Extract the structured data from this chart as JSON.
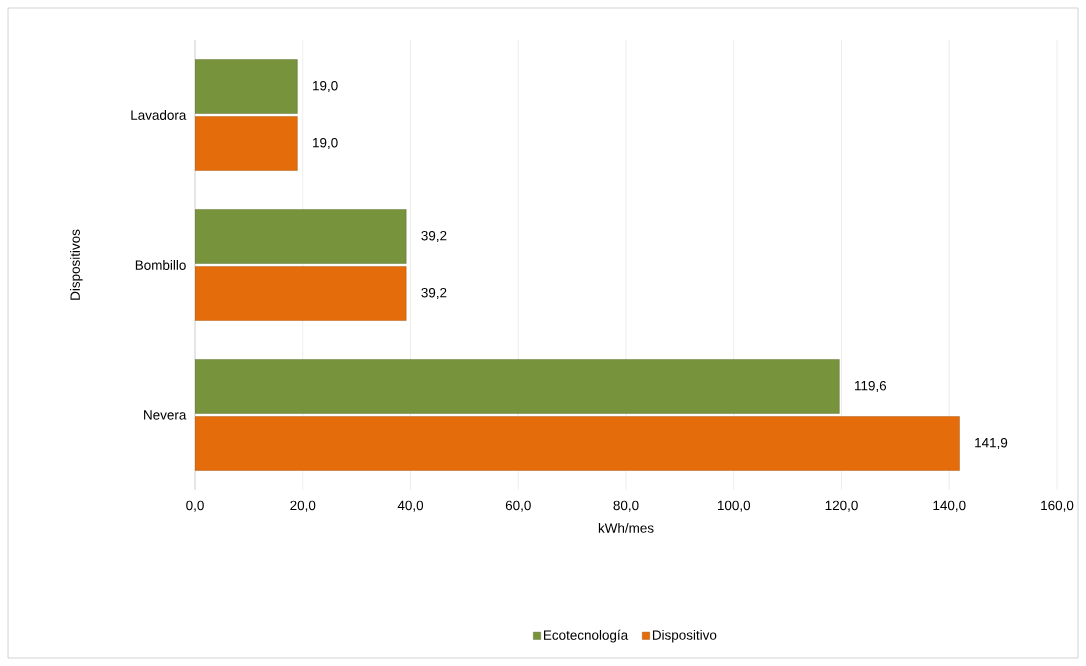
{
  "chart_data": {
    "type": "bar",
    "orientation": "horizontal",
    "xlabel": "kWh/mes",
    "ylabel": "Dispositivos",
    "categories": [
      "Lavadora",
      "Bombillo",
      "Nevera"
    ],
    "series": [
      {
        "name": "Ecotecnología",
        "color": "#77933c",
        "values": [
          19.0,
          39.2,
          119.6
        ],
        "value_labels": [
          "19,0",
          "39,2",
          "119,6"
        ]
      },
      {
        "name": "Dispositivo",
        "color": "#e46c0a",
        "values": [
          19.0,
          39.2,
          141.9
        ],
        "value_labels": [
          "19,0",
          "39,2",
          "141,9"
        ]
      }
    ],
    "xlim": [
      0,
      160
    ],
    "xticks": [
      {
        "value": 0,
        "label": "0,0"
      },
      {
        "value": 20,
        "label": "20,0"
      },
      {
        "value": 40,
        "label": "40,0"
      },
      {
        "value": 60,
        "label": "60,0"
      },
      {
        "value": 80,
        "label": "80,0"
      },
      {
        "value": 100,
        "label": "100,0"
      },
      {
        "value": 120,
        "label": "120,0"
      },
      {
        "value": 140,
        "label": "140,0"
      },
      {
        "value": 160,
        "label": "160,0"
      }
    ],
    "grid": "x",
    "legend": "bottom"
  }
}
